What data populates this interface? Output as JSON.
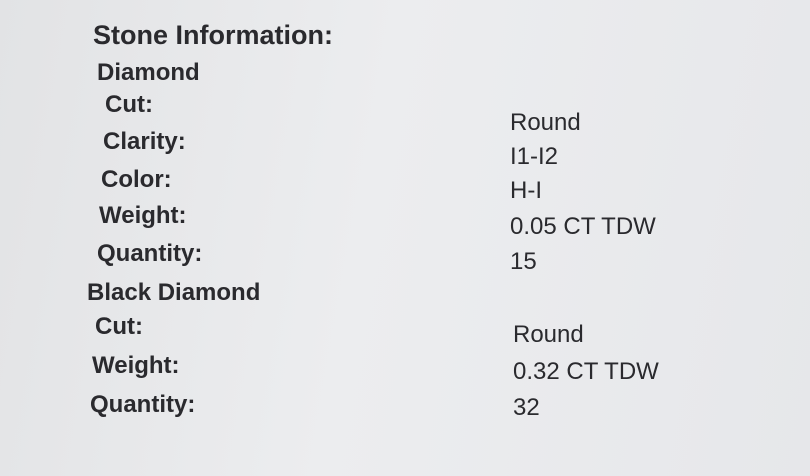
{
  "title": "Stone Information:",
  "sections": [
    {
      "name": "Diamond",
      "rows": [
        {
          "label": "Cut:",
          "value": "Round"
        },
        {
          "label": "Clarity:",
          "value": "I1-I2"
        },
        {
          "label": "Color:",
          "value": "H-I"
        },
        {
          "label": "Weight:",
          "value": "0.05 CT TDW"
        },
        {
          "label": "Quantity:",
          "value": "15"
        }
      ]
    },
    {
      "name": "Black Diamond",
      "rows": [
        {
          "label": "Cut:",
          "value": "Round"
        },
        {
          "label": "Weight:",
          "value": "0.32 CT TDW"
        },
        {
          "label": "Quantity:",
          "value": "32"
        }
      ]
    }
  ]
}
